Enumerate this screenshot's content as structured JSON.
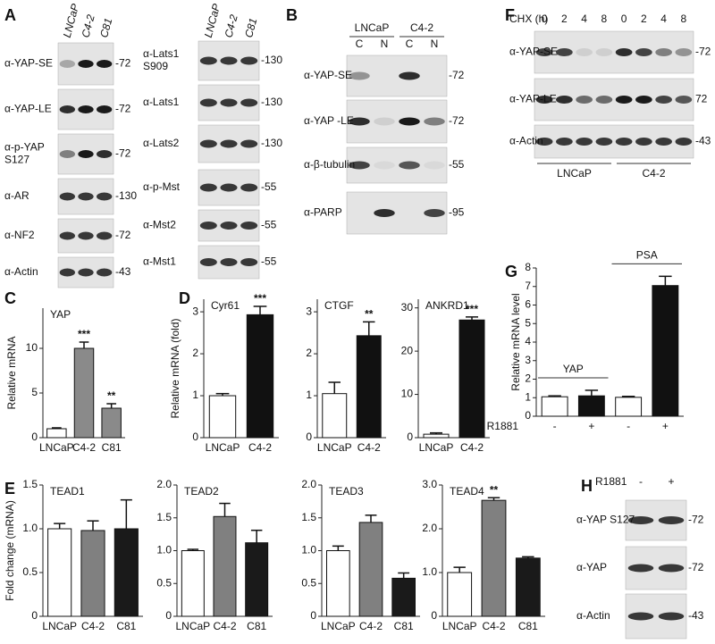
{
  "blots": [
    {
      "panel": "A",
      "lanes": [
        "LNCaP",
        "C4-2",
        "C81"
      ],
      "rows": [
        {
          "label": [
            "α-YAP-SE"
          ],
          "marker": "-72"
        },
        {
          "label": [
            "α-YAP-LE"
          ],
          "marker": "-72"
        },
        {
          "label": [
            "α-p-YAP",
            "S127"
          ],
          "marker": "-72"
        },
        {
          "label": [
            "α-AR"
          ],
          "marker": "-130"
        },
        {
          "label": [
            "α-NF2"
          ],
          "marker": "-72"
        },
        {
          "label": [
            "α-Actin"
          ],
          "marker": "-43"
        }
      ]
    },
    {
      "lanes": [
        "LNCaP",
        "C4-2",
        "C81"
      ],
      "rows": [
        {
          "label": [
            "α-Lats1",
            "S909"
          ],
          "marker": "-130"
        },
        {
          "label": [
            "α-Lats1"
          ],
          "marker": "-130"
        },
        {
          "label": [
            "α-Lats2"
          ],
          "marker": "-130"
        },
        {
          "label": [
            "α-p-Mst"
          ],
          "marker": "-55"
        },
        {
          "label": [
            "α-Mst2"
          ],
          "marker": "-55"
        },
        {
          "label": [
            "α-Mst1"
          ],
          "marker": "-55"
        }
      ]
    },
    {
      "panel": "B",
      "groups": [
        "LNCaP",
        "C4-2"
      ],
      "lanes": [
        "C",
        "N",
        "C",
        "N"
      ],
      "rows": [
        {
          "label": [
            "α-YAP-SE"
          ],
          "marker": "-72"
        },
        {
          "label": [
            "α-YAP -LE"
          ],
          "marker": "-72"
        },
        {
          "label": [
            "α-β-tubulin"
          ],
          "marker": "-55"
        },
        {
          "label": [
            "α-PARP"
          ],
          "marker": "-95"
        }
      ]
    },
    {
      "panel": "F",
      "treatment": "CHX (h)",
      "lanes": [
        0,
        2,
        4,
        8,
        0,
        2,
        4,
        8
      ],
      "groups": [
        "LNCaP",
        "C4-2"
      ],
      "rows": [
        {
          "label": [
            "α-YAP-SE"
          ],
          "marker": "-72"
        },
        {
          "label": [
            "α-YAP-LE"
          ],
          "marker": "72"
        },
        {
          "label": [
            "α-Actin"
          ],
          "marker": "-43"
        }
      ]
    },
    {
      "panel": "H",
      "treatment": "R1881",
      "lanes": [
        "-",
        "+"
      ],
      "rows": [
        {
          "label": [
            "α-YAP S127"
          ],
          "marker": "-72"
        },
        {
          "label": [
            "α-YAP"
          ],
          "marker": "-72"
        },
        {
          "label": [
            "α-Actin"
          ],
          "marker": "-43"
        }
      ]
    }
  ],
  "chart_data": [
    {
      "type": "bar",
      "panel": "C",
      "title": "YAP",
      "ylabel": "Relative mRNA",
      "categories": [
        "LNCaP",
        "C4-2",
        "C81"
      ],
      "values": [
        1,
        10,
        3.3
      ],
      "errors": [
        0.1,
        0.7,
        0.5
      ],
      "colors": [
        "#ffffff",
        "#8a8a8a",
        "#8a8a8a"
      ],
      "significance": [
        null,
        "***",
        "**"
      ],
      "ylim": [
        0,
        14.5
      ],
      "yticks": [
        0,
        5,
        10
      ]
    },
    {
      "type": "bar",
      "panel": "D",
      "title": "Cyr61",
      "ylabel": "Relative mRNA (fold)",
      "categories": [
        "LNCaP",
        "C4-2"
      ],
      "values": [
        1,
        2.93
      ],
      "errors": [
        0.05,
        0.2
      ],
      "colors": [
        "#ffffff",
        "#111111"
      ],
      "significance": [
        null,
        "***"
      ],
      "ylim": [
        0,
        3.3
      ],
      "yticks": [
        0,
        1,
        2,
        3
      ]
    },
    {
      "type": "bar",
      "title": "CTGF",
      "categories": [
        "LNCaP",
        "C4-2"
      ],
      "values": [
        1.05,
        2.43
      ],
      "errors": [
        0.27,
        0.33
      ],
      "colors": [
        "#ffffff",
        "#111111"
      ],
      "significance": [
        null,
        "**"
      ],
      "ylim": [
        0,
        3.3
      ],
      "yticks": [
        0,
        1,
        2,
        3
      ]
    },
    {
      "type": "bar",
      "title": "ANKRD1",
      "categories": [
        "LNCaP",
        "C4-2"
      ],
      "values": [
        0.8,
        27.2
      ],
      "errors": [
        0.3,
        0.7
      ],
      "colors": [
        "#ffffff",
        "#111111"
      ],
      "significance": [
        null,
        "***"
      ],
      "ylim": [
        0,
        32
      ],
      "yticks": [
        0,
        10,
        20,
        30
      ]
    },
    {
      "type": "bar",
      "panel": "E",
      "title": "TEAD1",
      "ylabel": "Fold change (mRNA)",
      "categories": [
        "LNCaP",
        "C4-2",
        "C81"
      ],
      "values": [
        1.0,
        0.98,
        1.0
      ],
      "errors": [
        0.06,
        0.11,
        0.33
      ],
      "colors": [
        "#ffffff",
        "#808080",
        "#1a1a1a"
      ],
      "ylim": [
        0,
        1.5
      ],
      "yticks": [
        0,
        0.5,
        {
          "value": 1,
          "label": "1.0"
        },
        1.5
      ]
    },
    {
      "type": "bar",
      "title": "TEAD2",
      "categories": [
        "LNCaP",
        "C4-2",
        "C81"
      ],
      "values": [
        1.0,
        1.52,
        1.12
      ],
      "errors": [
        0.02,
        0.2,
        0.19
      ],
      "colors": [
        "#ffffff",
        "#808080",
        "#1a1a1a"
      ],
      "ylim": [
        0,
        2
      ],
      "yticks": [
        0,
        0.5,
        {
          "value": 1,
          "label": "1.0"
        },
        1.5,
        {
          "value": 2,
          "label": "2.0"
        }
      ]
    },
    {
      "type": "bar",
      "title": "TEAD3",
      "categories": [
        "LNCaP",
        "C4-2",
        "C81"
      ],
      "values": [
        1.0,
        1.43,
        0.58
      ],
      "errors": [
        0.07,
        0.11,
        0.08
      ],
      "colors": [
        "#ffffff",
        "#808080",
        "#1a1a1a"
      ],
      "ylim": [
        0,
        2
      ],
      "yticks": [
        0,
        0.5,
        {
          "value": 1,
          "label": "1.0"
        },
        1.5,
        {
          "value": 2,
          "label": "2.0"
        }
      ]
    },
    {
      "type": "bar",
      "title": "TEAD4",
      "categories": [
        "LNCaP",
        "C4-2",
        "C81"
      ],
      "values": [
        1.0,
        2.65,
        1.33
      ],
      "errors": [
        0.12,
        0.06,
        0.03
      ],
      "colors": [
        "#ffffff",
        "#808080",
        "#1a1a1a"
      ],
      "significance": [
        null,
        "**",
        null
      ],
      "ylim": [
        0,
        3
      ],
      "yticks": [
        0,
        {
          "value": 1,
          "label": "1.0"
        },
        {
          "value": 2,
          "label": "2.0"
        },
        {
          "value": 3,
          "label": "3.0"
        }
      ]
    },
    {
      "type": "bar",
      "panel": "G",
      "ylabel": "Relative mRNA level",
      "categories": [
        "-",
        "+",
        "-",
        "+"
      ],
      "row_label": "R1881",
      "group_labels": [
        "YAP",
        "PSA"
      ],
      "values": [
        1.05,
        1.1,
        1.02,
        7.05
      ],
      "errors": [
        0.05,
        0.3,
        0.05,
        0.5
      ],
      "colors": [
        "#ffffff",
        "#111111",
        "#ffffff",
        "#111111"
      ],
      "ylim": [
        0,
        8
      ],
      "yticks": [
        0,
        1,
        2,
        3,
        4,
        5,
        6,
        7,
        8
      ]
    }
  ]
}
